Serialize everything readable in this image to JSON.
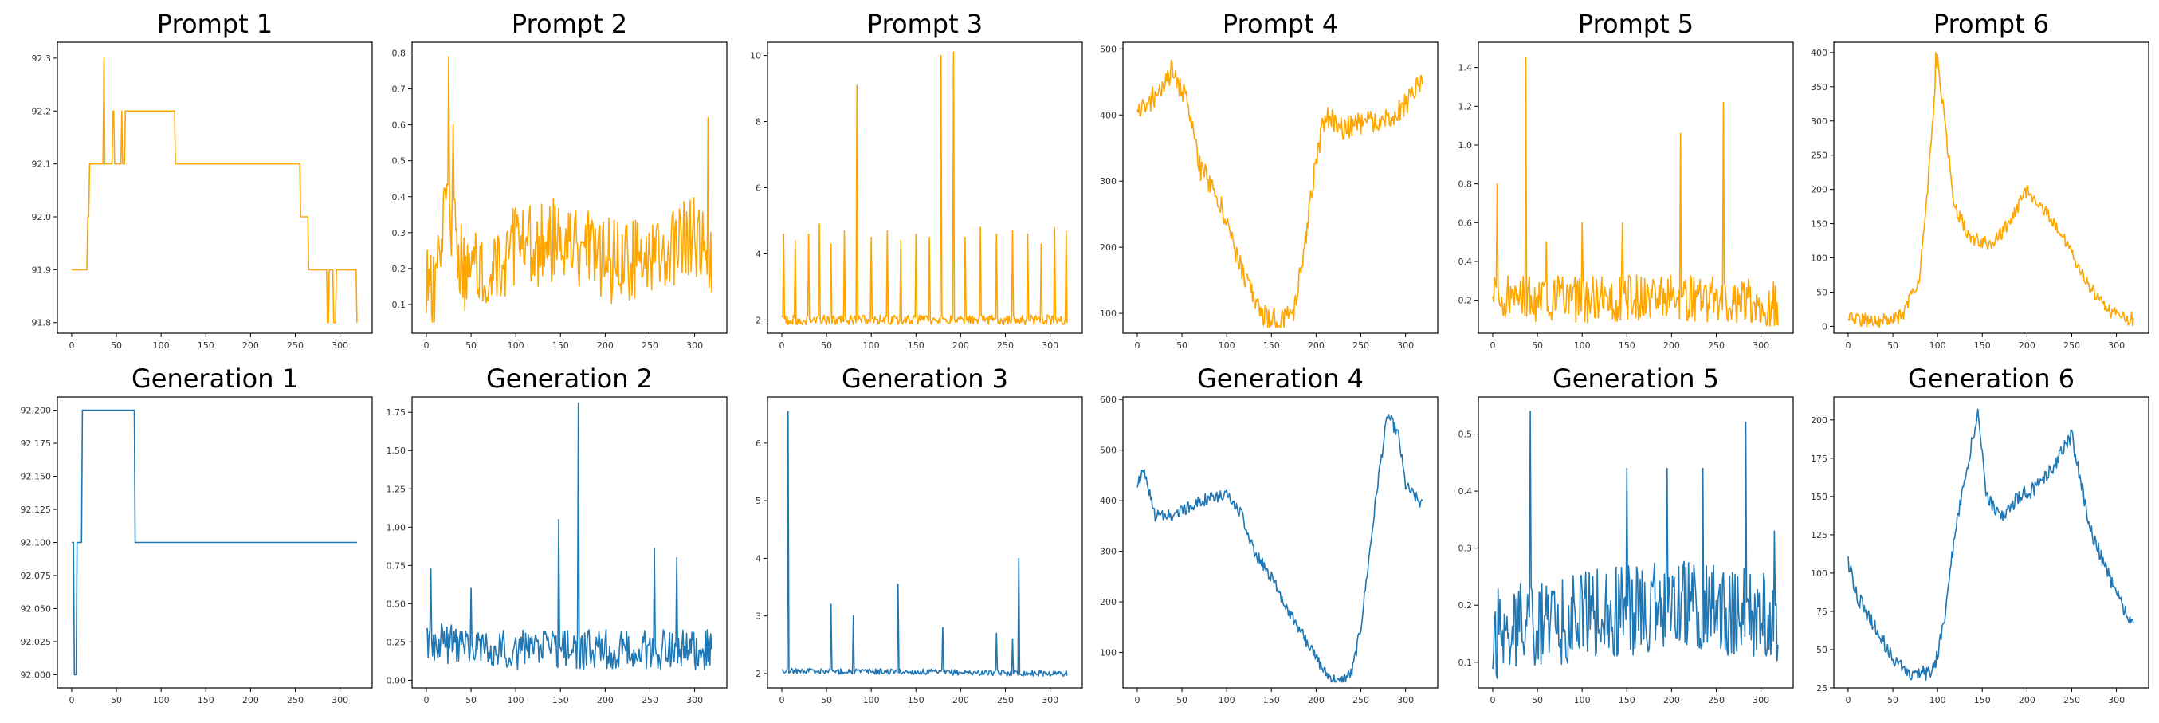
{
  "chart_data": [
    {
      "type": "line",
      "title": "Prompt 1",
      "color": "#FFA500",
      "xlim": [
        -16,
        336
      ],
      "ylim": [
        91.78,
        92.33
      ],
      "xticks": [
        0,
        50,
        100,
        150,
        200,
        250,
        300
      ],
      "yticks": [
        91.8,
        91.9,
        92.0,
        92.1,
        92.2,
        92.3
      ],
      "ytick_labels": [
        "91.8",
        "91.9",
        "92.0",
        "92.1",
        "92.2",
        "92.3"
      ],
      "profile": [
        [
          0,
          91.9
        ],
        [
          15,
          91.9
        ],
        [
          18,
          92.0
        ],
        [
          20,
          92.1
        ],
        [
          35,
          92.1
        ],
        [
          36,
          92.3
        ],
        [
          37,
          92.1
        ],
        [
          45,
          92.1
        ],
        [
          46,
          92.2
        ],
        [
          48,
          92.1
        ],
        [
          55,
          92.1
        ],
        [
          56,
          92.2
        ],
        [
          57,
          92.1
        ],
        [
          60,
          92.2
        ],
        [
          115,
          92.2
        ],
        [
          116,
          92.1
        ],
        [
          255,
          92.1
        ],
        [
          256,
          92.0
        ],
        [
          262,
          92.0
        ],
        [
          265,
          91.9
        ],
        [
          285,
          91.9
        ],
        [
          286,
          91.8
        ],
        [
          288,
          91.9
        ],
        [
          292,
          91.9
        ],
        [
          293,
          91.8
        ],
        [
          296,
          91.9
        ],
        [
          318,
          91.9
        ],
        [
          319,
          91.8
        ]
      ],
      "noise": 0,
      "spikes": [],
      "seed": 1,
      "n": 320
    },
    {
      "type": "line",
      "title": "Prompt 2",
      "color": "#FFA500",
      "xlim": [
        -16,
        336
      ],
      "ylim": [
        0.02,
        0.83
      ],
      "xticks": [
        0,
        50,
        100,
        150,
        200,
        250,
        300
      ],
      "yticks": [
        0.1,
        0.2,
        0.3,
        0.4,
        0.5,
        0.6,
        0.7,
        0.8
      ],
      "ytick_labels": [
        "0.1",
        "0.2",
        "0.3",
        "0.4",
        "0.5",
        "0.6",
        "0.7",
        "0.8"
      ],
      "profile": [
        [
          0,
          0.15
        ],
        [
          10,
          0.12
        ],
        [
          20,
          0.4
        ],
        [
          28,
          0.35
        ],
        [
          40,
          0.2
        ],
        [
          100,
          0.25
        ],
        [
          150,
          0.28
        ],
        [
          200,
          0.22
        ],
        [
          250,
          0.22
        ],
        [
          300,
          0.3
        ],
        [
          319,
          0.25
        ]
      ],
      "noise": 0.12,
      "spikes": [
        [
          25,
          0.79
        ],
        [
          30,
          0.6
        ],
        [
          315,
          0.62
        ]
      ],
      "seed": 2,
      "n": 320
    },
    {
      "type": "line",
      "title": "Prompt 3",
      "color": "#FFA500",
      "xlim": [
        -16,
        336
      ],
      "ylim": [
        1.6,
        10.4
      ],
      "xticks": [
        0,
        50,
        100,
        150,
        200,
        250,
        300
      ],
      "yticks": [
        2,
        4,
        6,
        8,
        10
      ],
      "ytick_labels": [
        "2",
        "4",
        "6",
        "8",
        "10"
      ],
      "profile": [
        [
          0,
          2.0
        ],
        [
          319,
          2.0
        ]
      ],
      "noise": 0.15,
      "spikes": [
        [
          2,
          4.6
        ],
        [
          15,
          4.4
        ],
        [
          30,
          4.6
        ],
        [
          42,
          4.9
        ],
        [
          55,
          4.3
        ],
        [
          70,
          4.7
        ],
        [
          84,
          9.1
        ],
        [
          100,
          4.5
        ],
        [
          118,
          4.7
        ],
        [
          133,
          4.4
        ],
        [
          150,
          4.6
        ],
        [
          165,
          4.5
        ],
        [
          178,
          10.0
        ],
        [
          192,
          10.1
        ],
        [
          205,
          4.5
        ],
        [
          222,
          4.8
        ],
        [
          240,
          4.6
        ],
        [
          258,
          4.7
        ],
        [
          275,
          4.6
        ],
        [
          290,
          4.3
        ],
        [
          305,
          4.8
        ],
        [
          318,
          4.7
        ]
      ],
      "seed": 3,
      "n": 320
    },
    {
      "type": "line",
      "title": "Prompt 4",
      "color": "#FFA500",
      "xlim": [
        -16,
        336
      ],
      "ylim": [
        70,
        510
      ],
      "xticks": [
        0,
        50,
        100,
        150,
        200,
        250,
        300
      ],
      "yticks": [
        100,
        200,
        300,
        400,
        500
      ],
      "ytick_labels": [
        "100",
        "200",
        "300",
        "400",
        "500"
      ],
      "profile": [
        [
          0,
          400
        ],
        [
          20,
          430
        ],
        [
          40,
          470
        ],
        [
          55,
          420
        ],
        [
          70,
          320
        ],
        [
          85,
          290
        ],
        [
          100,
          240
        ],
        [
          120,
          150
        ],
        [
          140,
          100
        ],
        [
          160,
          85
        ],
        [
          175,
          100
        ],
        [
          190,
          230
        ],
        [
          200,
          330
        ],
        [
          210,
          400
        ],
        [
          230,
          380
        ],
        [
          260,
          390
        ],
        [
          290,
          400
        ],
        [
          319,
          450
        ]
      ],
      "noise": 18,
      "spikes": [],
      "seed": 4,
      "n": 320
    },
    {
      "type": "line",
      "title": "Prompt 5",
      "color": "#FFA500",
      "xlim": [
        -16,
        336
      ],
      "ylim": [
        0.03,
        1.53
      ],
      "xticks": [
        0,
        50,
        100,
        150,
        200,
        250,
        300
      ],
      "yticks": [
        0.2,
        0.4,
        0.6,
        0.8,
        1.0,
        1.2,
        1.4
      ],
      "ytick_labels": [
        "0.2",
        "0.4",
        "0.6",
        "0.8",
        "1.0",
        "1.2",
        "1.4"
      ],
      "profile": [
        [
          0,
          0.22
        ],
        [
          100,
          0.2
        ],
        [
          200,
          0.22
        ],
        [
          319,
          0.18
        ]
      ],
      "noise": 0.12,
      "spikes": [
        [
          5,
          0.8
        ],
        [
          37,
          1.45
        ],
        [
          60,
          0.5
        ],
        [
          100,
          0.6
        ],
        [
          145,
          0.6
        ],
        [
          210,
          1.06
        ],
        [
          258,
          1.22
        ]
      ],
      "seed": 5,
      "n": 320
    },
    {
      "type": "line",
      "title": "Prompt 6",
      "color": "#FFA500",
      "xlim": [
        -16,
        336
      ],
      "ylim": [
        -10,
        415
      ],
      "xticks": [
        0,
        50,
        100,
        150,
        200,
        250,
        300
      ],
      "yticks": [
        0,
        50,
        100,
        150,
        200,
        250,
        300,
        350,
        400
      ],
      "ytick_labels": [
        "0",
        "50",
        "100",
        "150",
        "200",
        "250",
        "300",
        "350",
        "400"
      ],
      "profile": [
        [
          0,
          15
        ],
        [
          30,
          5
        ],
        [
          60,
          15
        ],
        [
          80,
          70
        ],
        [
          90,
          220
        ],
        [
          100,
          390
        ],
        [
          108,
          300
        ],
        [
          118,
          180
        ],
        [
          135,
          130
        ],
        [
          160,
          120
        ],
        [
          180,
          150
        ],
        [
          200,
          200
        ],
        [
          220,
          170
        ],
        [
          240,
          130
        ],
        [
          260,
          80
        ],
        [
          280,
          40
        ],
        [
          300,
          15
        ],
        [
          319,
          10
        ]
      ],
      "noise": 10,
      "spikes": [
        [
          98,
          400
        ]
      ],
      "seed": 6,
      "n": 320
    },
    {
      "type": "line",
      "title": "Generation 1",
      "color": "#1F77B4",
      "xlim": [
        -16,
        336
      ],
      "ylim": [
        91.99,
        92.21
      ],
      "xticks": [
        0,
        50,
        100,
        150,
        200,
        250,
        300
      ],
      "yticks": [
        92.0,
        92.025,
        92.05,
        92.075,
        92.1,
        92.125,
        92.15,
        92.175,
        92.2
      ],
      "ytick_labels": [
        "92.000",
        "92.025",
        "92.050",
        "92.075",
        "92.100",
        "92.125",
        "92.150",
        "92.175",
        "92.200"
      ],
      "profile": [
        [
          0,
          92.1
        ],
        [
          2,
          92.1
        ],
        [
          3,
          92.0
        ],
        [
          5,
          92.0
        ],
        [
          6,
          92.1
        ],
        [
          11,
          92.1
        ],
        [
          12,
          92.2
        ],
        [
          70,
          92.2
        ],
        [
          71,
          92.1
        ],
        [
          319,
          92.1
        ]
      ],
      "noise": 0,
      "spikes": [],
      "seed": 7,
      "n": 320
    },
    {
      "type": "line",
      "title": "Generation 2",
      "color": "#1F77B4",
      "xlim": [
        -16,
        336
      ],
      "ylim": [
        -0.05,
        1.85
      ],
      "xticks": [
        0,
        50,
        100,
        150,
        200,
        250,
        300
      ],
      "yticks": [
        0,
        0.25,
        0.5,
        0.75,
        1.0,
        1.25,
        1.5,
        1.75
      ],
      "ytick_labels": [
        "0.00",
        "0.25",
        "0.50",
        "0.75",
        "1.00",
        "1.25",
        "1.50",
        "1.75"
      ],
      "profile": [
        [
          0,
          0.25
        ],
        [
          100,
          0.2
        ],
        [
          200,
          0.2
        ],
        [
          319,
          0.2
        ]
      ],
      "noise": 0.13,
      "spikes": [
        [
          5,
          0.73
        ],
        [
          50,
          0.6
        ],
        [
          148,
          1.05
        ],
        [
          170,
          1.81
        ],
        [
          255,
          0.86
        ],
        [
          280,
          0.8
        ]
      ],
      "seed": 8,
      "n": 320
    },
    {
      "type": "line",
      "title": "Generation 3",
      "color": "#1F77B4",
      "xlim": [
        -16,
        336
      ],
      "ylim": [
        1.75,
        6.8
      ],
      "xticks": [
        0,
        50,
        100,
        150,
        200,
        250,
        300
      ],
      "yticks": [
        2,
        3,
        4,
        5,
        6
      ],
      "ytick_labels": [
        "2",
        "3",
        "4",
        "5",
        "6"
      ],
      "profile": [
        [
          0,
          2.05
        ],
        [
          319,
          2.0
        ]
      ],
      "noise": 0.05,
      "spikes": [
        [
          7,
          6.55
        ],
        [
          55,
          3.2
        ],
        [
          80,
          3.0
        ],
        [
          130,
          3.55
        ],
        [
          180,
          2.8
        ],
        [
          240,
          2.7
        ],
        [
          258,
          2.6
        ],
        [
          265,
          4.0
        ]
      ],
      "seed": 9,
      "n": 320
    },
    {
      "type": "line",
      "title": "Generation 4",
      "color": "#1F77B4",
      "xlim": [
        -16,
        336
      ],
      "ylim": [
        30,
        605
      ],
      "xticks": [
        0,
        50,
        100,
        150,
        200,
        250,
        300
      ],
      "yticks": [
        100,
        200,
        300,
        400,
        500,
        600
      ],
      "ytick_labels": [
        "100",
        "200",
        "300",
        "400",
        "500",
        "600"
      ],
      "profile": [
        [
          0,
          430
        ],
        [
          8,
          460
        ],
        [
          20,
          370
        ],
        [
          40,
          370
        ],
        [
          70,
          400
        ],
        [
          100,
          410
        ],
        [
          115,
          380
        ],
        [
          130,
          300
        ],
        [
          150,
          250
        ],
        [
          170,
          180
        ],
        [
          190,
          120
        ],
        [
          210,
          60
        ],
        [
          225,
          40
        ],
        [
          240,
          60
        ],
        [
          250,
          150
        ],
        [
          260,
          300
        ],
        [
          270,
          450
        ],
        [
          280,
          570
        ],
        [
          292,
          530
        ],
        [
          300,
          430
        ],
        [
          319,
          390
        ]
      ],
      "noise": 12,
      "spikes": [],
      "seed": 10,
      "n": 320
    },
    {
      "type": "line",
      "title": "Generation 5",
      "color": "#1F77B4",
      "xlim": [
        -16,
        336
      ],
      "ylim": [
        0.055,
        0.565
      ],
      "xticks": [
        0,
        50,
        100,
        150,
        200,
        250,
        300
      ],
      "yticks": [
        0.1,
        0.2,
        0.3,
        0.4,
        0.5
      ],
      "ytick_labels": [
        "0.1",
        "0.2",
        "0.3",
        "0.4",
        "0.5"
      ],
      "profile": [
        [
          0,
          0.15
        ],
        [
          100,
          0.18
        ],
        [
          200,
          0.2
        ],
        [
          319,
          0.18
        ]
      ],
      "noise": 0.08,
      "spikes": [
        [
          42,
          0.54
        ],
        [
          150,
          0.44
        ],
        [
          195,
          0.44
        ],
        [
          235,
          0.44
        ],
        [
          283,
          0.52
        ],
        [
          315,
          0.33
        ]
      ],
      "seed": 11,
      "n": 320
    },
    {
      "type": "line",
      "title": "Generation 6",
      "color": "#1F77B4",
      "xlim": [
        -16,
        336
      ],
      "ylim": [
        25,
        215
      ],
      "xticks": [
        0,
        50,
        100,
        150,
        200,
        250,
        300
      ],
      "yticks": [
        25,
        50,
        75,
        100,
        125,
        150,
        175,
        200
      ],
      "ytick_labels": [
        "25",
        "50",
        "75",
        "100",
        "125",
        "150",
        "175",
        "200"
      ],
      "profile": [
        [
          0,
          107
        ],
        [
          10,
          85
        ],
        [
          30,
          65
        ],
        [
          50,
          45
        ],
        [
          70,
          33
        ],
        [
          90,
          35
        ],
        [
          100,
          45
        ],
        [
          110,
          80
        ],
        [
          120,
          130
        ],
        [
          135,
          175
        ],
        [
          145,
          205
        ],
        [
          155,
          150
        ],
        [
          170,
          135
        ],
        [
          190,
          150
        ],
        [
          210,
          155
        ],
        [
          230,
          170
        ],
        [
          250,
          190
        ],
        [
          260,
          160
        ],
        [
          270,
          130
        ],
        [
          290,
          100
        ],
        [
          305,
          80
        ],
        [
          319,
          68
        ]
      ],
      "noise": 5,
      "spikes": [],
      "seed": 12,
      "n": 320
    }
  ]
}
